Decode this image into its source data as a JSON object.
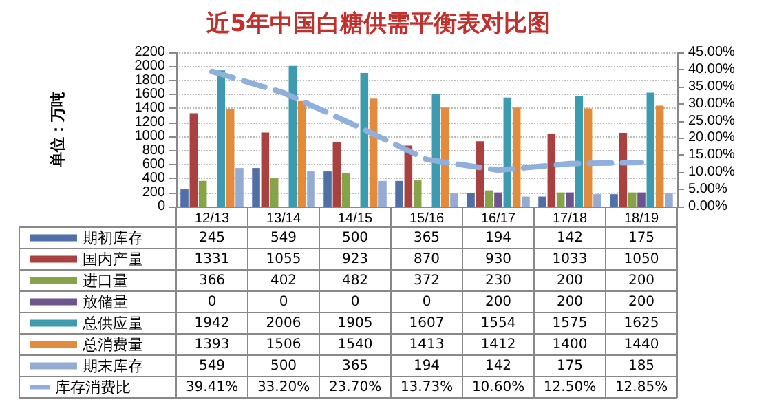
{
  "chart_data": {
    "type": "bar",
    "title": "近5年中国白糖供需平衡表对比图",
    "ylabel": "单位：万吨",
    "categories": [
      "12/13",
      "13/14",
      "14/15",
      "15/16",
      "16/17",
      "17/18",
      "18/19"
    ],
    "series": [
      {
        "name": "期初库存",
        "color": "#4f6fa6",
        "values": [
          245,
          549,
          500,
          365,
          194,
          142,
          175
        ]
      },
      {
        "name": "国内产量",
        "color": "#a8413f",
        "values": [
          1331,
          1055,
          923,
          870,
          930,
          1033,
          1050
        ]
      },
      {
        "name": "进口量",
        "color": "#86a34a",
        "values": [
          366,
          402,
          482,
          372,
          230,
          200,
          200
        ]
      },
      {
        "name": "放储量",
        "color": "#6e548d",
        "values": [
          0,
          0,
          0,
          0,
          200,
          200,
          200
        ]
      },
      {
        "name": "总供应量",
        "color": "#3d9bb0",
        "values": [
          1942,
          2006,
          1905,
          1607,
          1554,
          1575,
          1625
        ]
      },
      {
        "name": "总消费量",
        "color": "#e38b3d",
        "values": [
          1393,
          1506,
          1540,
          1413,
          1412,
          1400,
          1440
        ]
      },
      {
        "name": "期末库存",
        "color": "#94abd3",
        "values": [
          549,
          500,
          365,
          194,
          142,
          175,
          185
        ]
      },
      {
        "name": "库存消费比",
        "type": "line",
        "axis": "y2",
        "color": "#8fb0dc",
        "line_style": "dashed",
        "marker": "none",
        "values": [
          39.41,
          33.2,
          23.7,
          13.73,
          10.6,
          12.5,
          12.85
        ],
        "value_labels": [
          "39.41%",
          "33.20%",
          "23.70%",
          "13.73%",
          "10.60%",
          "12.50%",
          "12.85%"
        ]
      }
    ],
    "ylim": [
      0,
      2200
    ],
    "yticks": [
      0,
      200,
      400,
      600,
      800,
      1000,
      1200,
      1400,
      1600,
      1800,
      2000,
      2200
    ],
    "y2lim": [
      0,
      45
    ],
    "y2ticks": [
      {
        "value": 0,
        "label": "0.00%"
      },
      {
        "value": 5,
        "label": "5.00%"
      },
      {
        "value": 10,
        "label": "10.00%"
      },
      {
        "value": 15,
        "label": "15.00%"
      },
      {
        "value": 20,
        "label": "20.00%"
      },
      {
        "value": 25,
        "label": "25.00%"
      },
      {
        "value": 30,
        "label": "30.00%"
      },
      {
        "value": 35,
        "label": "35.00%"
      },
      {
        "value": 40,
        "label": "40.00%"
      },
      {
        "value": 45,
        "label": "45.00%"
      }
    ],
    "grid": "y",
    "legend": "bottom left",
    "data_labels": true
  }
}
